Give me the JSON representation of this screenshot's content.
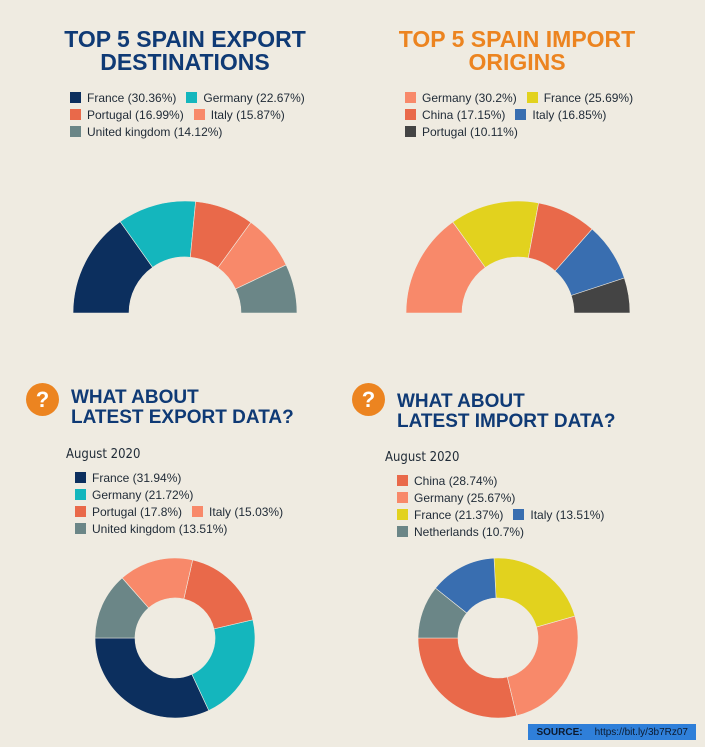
{
  "source": {
    "label": "SOURCE:",
    "url": "https://bit.ly/3b7Rz07"
  },
  "chart_data": [
    {
      "type": "pie",
      "variant": "semi-donut",
      "title": "TOP 5 SPAIN EXPORT DESTINATIONS",
      "title_lines": [
        "TOP 5 SPAIN EXPORT",
        "DESTINATIONS"
      ],
      "legend_position": "top",
      "legend_rows": [
        [
          0,
          1
        ],
        [
          2,
          3
        ],
        [
          4
        ]
      ],
      "slices": [
        {
          "label": "France",
          "value": 30.36,
          "legend": "France (30.36%)",
          "color": "#0c2f5e"
        },
        {
          "label": "Germany",
          "value": 22.67,
          "legend": "Germany (22.67%)",
          "color": "#14b6bd"
        },
        {
          "label": "Portugal",
          "value": 16.99,
          "legend": "Portugal (16.99%)",
          "color": "#e9694a"
        },
        {
          "label": "Italy",
          "value": 15.87,
          "legend": "Italy (15.87%)",
          "color": "#f8896a"
        },
        {
          "label": "United kingdom",
          "value": 14.12,
          "legend": "United kingdom (14.12%)",
          "color": "#6b8687"
        }
      ]
    },
    {
      "type": "pie",
      "variant": "semi-donut",
      "title": "TOP 5 SPAIN IMPORT ORIGINS",
      "title_lines": [
        "TOP 5 SPAIN IMPORT",
        "ORIGINS"
      ],
      "legend_position": "top",
      "legend_rows": [
        [
          0,
          1
        ],
        [
          2,
          3
        ],
        [
          4
        ]
      ],
      "slices": [
        {
          "label": "Germany",
          "value": 30.2,
          "legend": "Germany (30.2%)",
          "color": "#f8896a"
        },
        {
          "label": "France",
          "value": 25.69,
          "legend": "France (25.69%)",
          "color": "#e2d21e"
        },
        {
          "label": "China",
          "value": 17.15,
          "legend": "China (17.15%)",
          "color": "#e9694a"
        },
        {
          "label": "Italy",
          "value": 16.85,
          "legend": "Italy (16.85%)",
          "color": "#396eb0"
        },
        {
          "label": "Portugal",
          "value": 10.11,
          "legend": "Portugal (10.11%)",
          "color": "#444444"
        }
      ]
    },
    {
      "type": "pie",
      "variant": "donut",
      "title": "WHAT ABOUT LATEST EXPORT DATA?",
      "title_lines": [
        "WHAT ABOUT",
        "LATEST EXPORT DATA?"
      ],
      "period": "August 2020",
      "legend_position": "top",
      "legend_rows": [
        [
          0
        ],
        [
          1
        ],
        [
          2,
          3
        ],
        [
          4
        ]
      ],
      "slices": [
        {
          "label": "France",
          "value": 31.94,
          "legend": "France (31.94%)",
          "color": "#0c2f5e"
        },
        {
          "label": "Germany",
          "value": 21.72,
          "legend": "Germany (21.72%)",
          "color": "#14b6bd"
        },
        {
          "label": "Portugal",
          "value": 17.8,
          "legend": "Portugal (17.8%)",
          "color": "#e9694a"
        },
        {
          "label": "Italy",
          "value": 15.03,
          "legend": "Italy (15.03%)",
          "color": "#f8896a"
        },
        {
          "label": "United kingdom",
          "value": 13.51,
          "legend": "United kingdom (13.51%)",
          "color": "#6b8687"
        }
      ]
    },
    {
      "type": "pie",
      "variant": "donut",
      "title": "WHAT ABOUT LATEST IMPORT DATA?",
      "title_lines": [
        "WHAT ABOUT",
        "LATEST IMPORT DATA?"
      ],
      "period": "August 2020",
      "legend_position": "top",
      "legend_rows": [
        [
          0
        ],
        [
          1
        ],
        [
          2,
          3
        ],
        [
          4
        ]
      ],
      "slices": [
        {
          "label": "China",
          "value": 28.74,
          "legend": "China (28.74%)",
          "color": "#e9694a"
        },
        {
          "label": "Germany",
          "value": 25.67,
          "legend": "Germany (25.67%)",
          "color": "#f8896a"
        },
        {
          "label": "France",
          "value": 21.37,
          "legend": "France (21.37%)",
          "color": "#e2d21e"
        },
        {
          "label": "Italy",
          "value": 13.51,
          "legend": "Italy (13.51%)",
          "color": "#396eb0"
        },
        {
          "label": "Netherlands",
          "value": 10.7,
          "legend": "Netherlands (10.7%)",
          "color": "#6b8687"
        }
      ]
    }
  ]
}
